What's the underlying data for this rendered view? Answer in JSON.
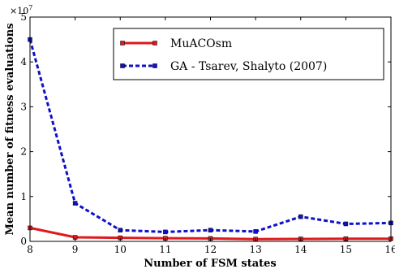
{
  "chart_data": {
    "type": "line",
    "xlabel": "Number of FSM states",
    "ylabel": "Mean number of fitness evaluations",
    "y_multiplier": "×10^7",
    "x": [
      8,
      9,
      10,
      11,
      12,
      13,
      14,
      15,
      16
    ],
    "xlim": [
      8,
      16
    ],
    "ylim": [
      0,
      5
    ],
    "xticks": [
      "8",
      "9",
      "10",
      "11",
      "12",
      "13",
      "14",
      "15",
      "16"
    ],
    "yticks": [
      "0",
      "1",
      "2",
      "3",
      "4",
      "5"
    ],
    "grid": false,
    "legend_position": "top-right",
    "series": [
      {
        "name": "MuACOsm",
        "values": [
          0.3,
          0.09,
          0.08,
          0.07,
          0.065,
          0.05,
          0.055,
          0.06,
          0.06
        ],
        "color": "#e0191c",
        "style": "solid"
      },
      {
        "name": "GA - Tsarev, Shalyto (2007)",
        "values": [
          4.5,
          0.85,
          0.25,
          0.21,
          0.25,
          0.22,
          0.55,
          0.39,
          0.41
        ],
        "color": "#1010c8",
        "style": "dashed"
      }
    ]
  }
}
